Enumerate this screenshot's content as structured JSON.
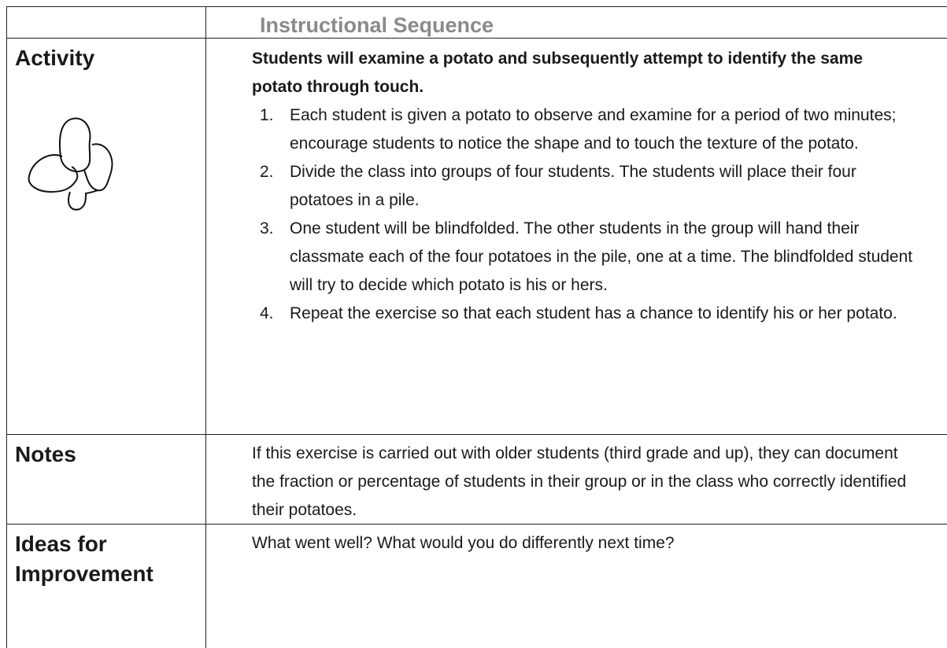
{
  "header": {
    "title": "Instructional Sequence"
  },
  "rows": [
    {
      "label": "Activity",
      "intro": "Students will examine a potato and subsequently attempt to identify the same potato through touch.",
      "steps": [
        {
          "number": "1.",
          "text": "Each student is given a potato to observe and examine for a period of two minutes; encourage students to notice the shape and to touch the texture of the potato."
        },
        {
          "number": "2.",
          "text": "Divide the class into groups of four students. The students will place their four potatoes in a pile."
        },
        {
          "number": "3.",
          "text": "One student will be blindfolded. The other students in the group will hand their classmate each of the four potatoes in the pile, one at a time. The blindfolded student will try to decide which potato is his or hers."
        },
        {
          "number": "4.",
          "text": "Repeat the exercise so that each student has a chance to identify his or her potato."
        }
      ]
    },
    {
      "label": "Notes",
      "text": "If this exercise is carried out with older students (third grade and up), they can document the fraction or percentage of students in their group or in the class who correctly identified their potatoes."
    },
    {
      "label": "Ideas for Improvement",
      "text": "What went well? What would you do differently next time?"
    }
  ]
}
